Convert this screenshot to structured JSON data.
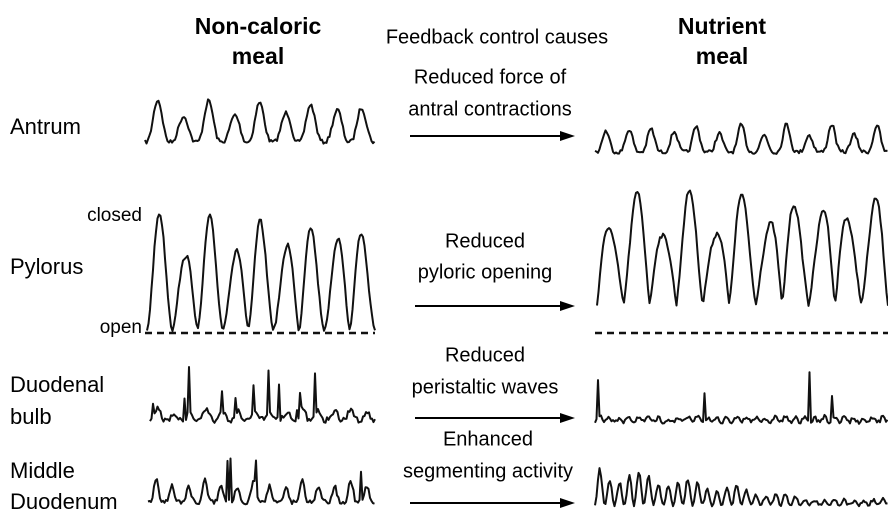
{
  "header": {
    "left": [
      "Non-caloric",
      "meal"
    ],
    "middle": "Feedback control causes",
    "right": [
      "Nutrient",
      "meal"
    ]
  },
  "rows": [
    {
      "label": [
        "Antrum"
      ],
      "effect": [
        "Reduced force of",
        "antral contractions"
      ]
    },
    {
      "label": [
        "Pylorus"
      ],
      "effect": [
        "Reduced",
        "pyloric opening"
      ],
      "top_mark": "closed",
      "bottom_mark": "open"
    },
    {
      "label": [
        "Duodenal",
        "bulb"
      ],
      "effect": [
        "Reduced",
        "peristaltic waves"
      ]
    },
    {
      "label": [
        "Middle",
        "Duodenum"
      ],
      "effect": [
        "Enhanced",
        "segmenting activity"
      ]
    }
  ]
}
